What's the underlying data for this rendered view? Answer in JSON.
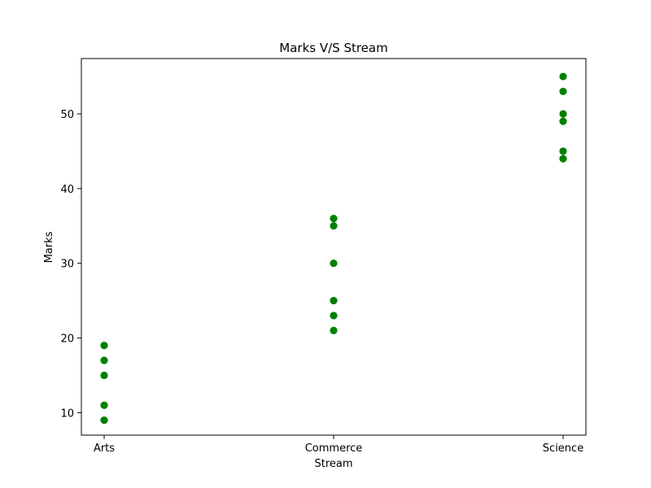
{
  "chart_data": {
    "type": "scatter",
    "title": "Marks V/S Stream",
    "xlabel": "Stream",
    "ylabel": "Marks",
    "categories": [
      "Arts",
      "Commerce",
      "Science"
    ],
    "series": [
      {
        "color": "#008000",
        "points": [
          {
            "x": "Arts",
            "y": 19
          },
          {
            "x": "Arts",
            "y": 17
          },
          {
            "x": "Arts",
            "y": 15
          },
          {
            "x": "Arts",
            "y": 11
          },
          {
            "x": "Arts",
            "y": 9
          },
          {
            "x": "Commerce",
            "y": 36
          },
          {
            "x": "Commerce",
            "y": 35
          },
          {
            "x": "Commerce",
            "y": 30
          },
          {
            "x": "Commerce",
            "y": 25
          },
          {
            "x": "Commerce",
            "y": 23
          },
          {
            "x": "Commerce",
            "y": 21
          },
          {
            "x": "Science",
            "y": 55
          },
          {
            "x": "Science",
            "y": 53
          },
          {
            "x": "Science",
            "y": 50
          },
          {
            "x": "Science",
            "y": 49
          },
          {
            "x": "Science",
            "y": 45
          },
          {
            "x": "Science",
            "y": 44
          }
        ]
      }
    ],
    "yticks": [
      10,
      20,
      30,
      40,
      50
    ],
    "ylim": [
      7,
      57.4
    ],
    "grid": false,
    "legend": false
  }
}
